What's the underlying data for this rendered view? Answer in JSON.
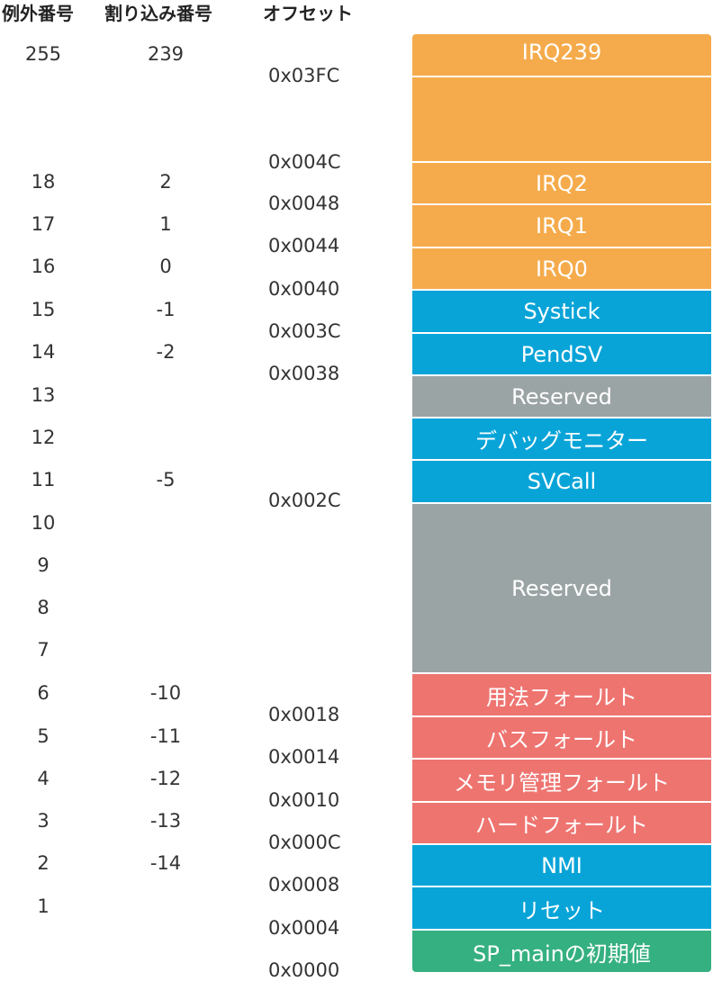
{
  "headers": {
    "exception": "例外番号",
    "interrupt": "割り込み番号",
    "offset": "オフセット"
  },
  "colors": {
    "irq": "#f5ab4b",
    "system": "#08a4d8",
    "reserved": "#9ba4a5",
    "fault": "#ee7470",
    "sp": "#35b081"
  },
  "exception_numbers": [
    "255",
    "18",
    "17",
    "16",
    "15",
    "14",
    "13",
    "12",
    "11",
    "10",
    "9",
    "8",
    "7",
    "6",
    "5",
    "4",
    "3",
    "2",
    "1"
  ],
  "interrupt_numbers": [
    "239",
    "2",
    "1",
    "0",
    "-1",
    "-2",
    "-5",
    "-10",
    "-11",
    "-12",
    "-13",
    "-14"
  ],
  "offsets": [
    "0x03FC",
    "0x004C",
    "0x0048",
    "0x0044",
    "0x0040",
    "0x003C",
    "0x0038",
    "0x002C",
    "0x0018",
    "0x0014",
    "0x0010",
    "0x000C",
    "0x0008",
    "0x0004",
    "0x0000"
  ],
  "blocks": [
    {
      "label": "IRQ239",
      "kind": "irq"
    },
    {
      "label": "",
      "kind": "irq"
    },
    {
      "label": "IRQ2",
      "kind": "irq"
    },
    {
      "label": "IRQ1",
      "kind": "irq"
    },
    {
      "label": "IRQ0",
      "kind": "irq"
    },
    {
      "label": "Systick",
      "kind": "system"
    },
    {
      "label": "PendSV",
      "kind": "system"
    },
    {
      "label": "Reserved",
      "kind": "reserved"
    },
    {
      "label": "デバッグモニター",
      "kind": "system"
    },
    {
      "label": "SVCall",
      "kind": "system"
    },
    {
      "label": "Reserved",
      "kind": "reserved"
    },
    {
      "label": "用法フォールト",
      "kind": "fault"
    },
    {
      "label": "バスフォールト",
      "kind": "fault"
    },
    {
      "label": "メモリ管理フォールト",
      "kind": "fault"
    },
    {
      "label": "ハードフォールト",
      "kind": "fault"
    },
    {
      "label": "NMI",
      "kind": "system"
    },
    {
      "label": "リセット",
      "kind": "system"
    },
    {
      "label": "SP_mainの初期値",
      "kind": "sp"
    }
  ]
}
